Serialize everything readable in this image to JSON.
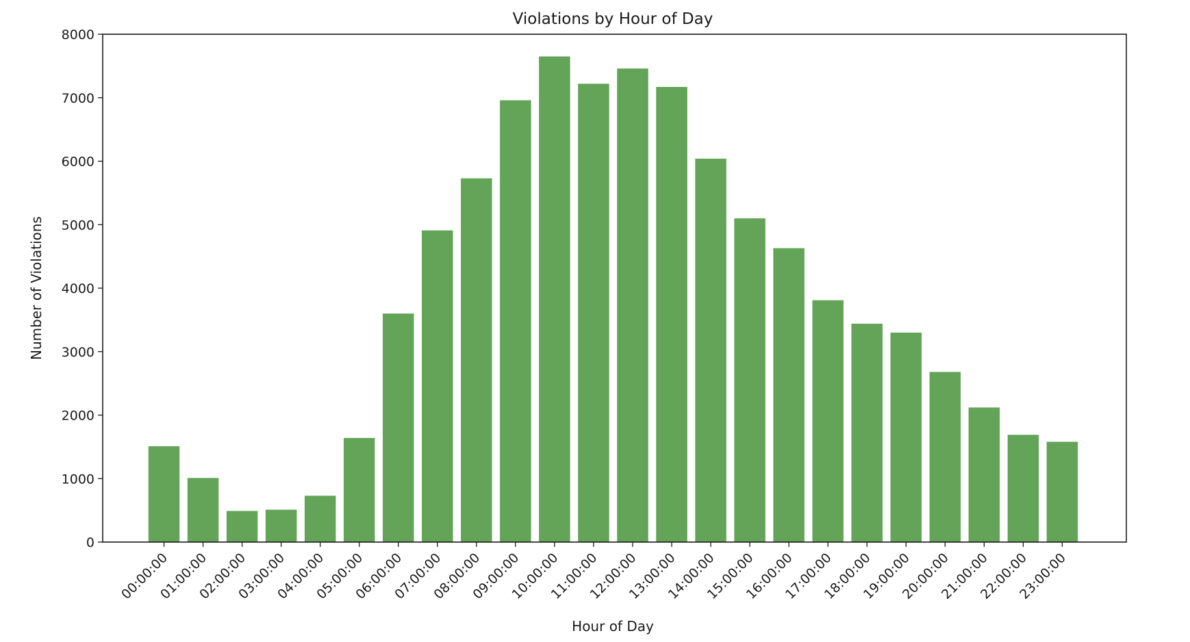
{
  "chart_data": {
    "type": "bar",
    "title": "Violations by Hour of Day",
    "xlabel": "Hour of Day",
    "ylabel": "Number of Violations",
    "categories": [
      "00:00:00",
      "01:00:00",
      "02:00:00",
      "03:00:00",
      "04:00:00",
      "05:00:00",
      "06:00:00",
      "07:00:00",
      "08:00:00",
      "09:00:00",
      "10:00:00",
      "11:00:00",
      "12:00:00",
      "13:00:00",
      "14:00:00",
      "15:00:00",
      "16:00:00",
      "17:00:00",
      "18:00:00",
      "19:00:00",
      "20:00:00",
      "21:00:00",
      "22:00:00",
      "23:00:00"
    ],
    "values": [
      1510,
      1010,
      490,
      510,
      730,
      1640,
      3600,
      4910,
      5730,
      6960,
      7650,
      7220,
      7460,
      7170,
      6040,
      5100,
      4630,
      3810,
      3440,
      3300,
      2680,
      2120,
      1690,
      1580
    ],
    "ylim": [
      0,
      8000
    ],
    "yticks": [
      0,
      1000,
      2000,
      3000,
      4000,
      5000,
      6000,
      7000,
      8000
    ],
    "bar_color": "#63a458",
    "grid": false,
    "legend": "none"
  }
}
